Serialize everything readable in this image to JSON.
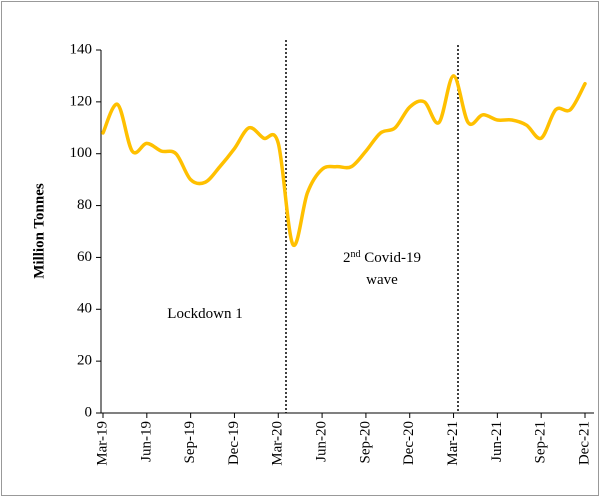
{
  "chart_data": {
    "type": "line",
    "y_label": "Million Tonnes",
    "categories": [
      "Mar-19",
      null,
      null,
      "Jun-19",
      null,
      null,
      "Sep-19",
      null,
      null,
      "Dec-19",
      null,
      null,
      "Mar-20",
      null,
      null,
      "Jun-20",
      null,
      null,
      "Sep-20",
      null,
      null,
      "Dec-20",
      null,
      null,
      "Mar-21",
      null,
      null,
      "Jun-21",
      null,
      null,
      "Sep-21",
      null,
      null,
      "Dec-21"
    ],
    "series": [
      {
        "name": "Million Tonnes",
        "color": "#ffc000",
        "values": [
          108,
          119,
          101,
          104,
          101,
          100,
          90,
          89,
          95,
          102,
          110,
          106,
          104,
          65,
          85,
          94,
          95,
          95,
          101,
          108,
          110,
          118,
          120,
          112,
          130,
          112,
          115,
          113,
          113,
          111,
          106,
          117,
          117,
          127
        ]
      }
    ],
    "ylim": [
      0,
      140
    ],
    "yticks": [
      0,
      20,
      40,
      60,
      80,
      100,
      120,
      140
    ],
    "annotations": [
      {
        "text": "Lockdown 1"
      },
      {
        "parts": [
          "2",
          "nd",
          " Covid-19"
        ],
        "line2": "wave"
      }
    ]
  }
}
